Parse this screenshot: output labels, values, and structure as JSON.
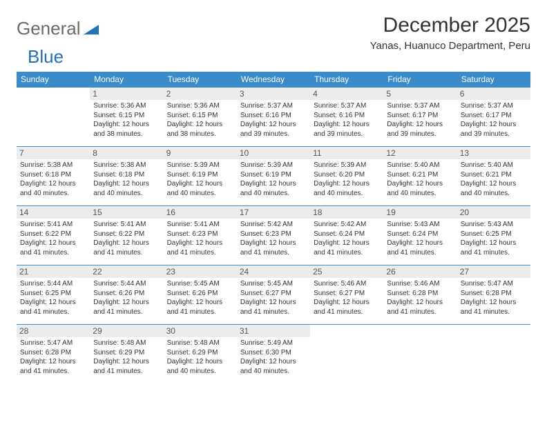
{
  "logo": {
    "part1": "General",
    "part2": "Blue"
  },
  "title": "December 2025",
  "location": "Yanas, Huanuco Department, Peru",
  "colors": {
    "header_bg": "#3a8bc9",
    "daynum_bg": "#ececec",
    "border": "#3a8bc9",
    "text": "#333333",
    "logo_gray": "#6a6a6a",
    "logo_blue": "#2170b8"
  },
  "weekdays": [
    "Sunday",
    "Monday",
    "Tuesday",
    "Wednesday",
    "Thursday",
    "Friday",
    "Saturday"
  ],
  "weeks": [
    [
      null,
      {
        "n": "1",
        "sr": "5:36 AM",
        "ss": "6:15 PM",
        "dl": "12 hours and 38 minutes."
      },
      {
        "n": "2",
        "sr": "5:36 AM",
        "ss": "6:15 PM",
        "dl": "12 hours and 38 minutes."
      },
      {
        "n": "3",
        "sr": "5:37 AM",
        "ss": "6:16 PM",
        "dl": "12 hours and 39 minutes."
      },
      {
        "n": "4",
        "sr": "5:37 AM",
        "ss": "6:16 PM",
        "dl": "12 hours and 39 minutes."
      },
      {
        "n": "5",
        "sr": "5:37 AM",
        "ss": "6:17 PM",
        "dl": "12 hours and 39 minutes."
      },
      {
        "n": "6",
        "sr": "5:37 AM",
        "ss": "6:17 PM",
        "dl": "12 hours and 39 minutes."
      }
    ],
    [
      {
        "n": "7",
        "sr": "5:38 AM",
        "ss": "6:18 PM",
        "dl": "12 hours and 40 minutes."
      },
      {
        "n": "8",
        "sr": "5:38 AM",
        "ss": "6:18 PM",
        "dl": "12 hours and 40 minutes."
      },
      {
        "n": "9",
        "sr": "5:39 AM",
        "ss": "6:19 PM",
        "dl": "12 hours and 40 minutes."
      },
      {
        "n": "10",
        "sr": "5:39 AM",
        "ss": "6:19 PM",
        "dl": "12 hours and 40 minutes."
      },
      {
        "n": "11",
        "sr": "5:39 AM",
        "ss": "6:20 PM",
        "dl": "12 hours and 40 minutes."
      },
      {
        "n": "12",
        "sr": "5:40 AM",
        "ss": "6:21 PM",
        "dl": "12 hours and 40 minutes."
      },
      {
        "n": "13",
        "sr": "5:40 AM",
        "ss": "6:21 PM",
        "dl": "12 hours and 40 minutes."
      }
    ],
    [
      {
        "n": "14",
        "sr": "5:41 AM",
        "ss": "6:22 PM",
        "dl": "12 hours and 41 minutes."
      },
      {
        "n": "15",
        "sr": "5:41 AM",
        "ss": "6:22 PM",
        "dl": "12 hours and 41 minutes."
      },
      {
        "n": "16",
        "sr": "5:41 AM",
        "ss": "6:23 PM",
        "dl": "12 hours and 41 minutes."
      },
      {
        "n": "17",
        "sr": "5:42 AM",
        "ss": "6:23 PM",
        "dl": "12 hours and 41 minutes."
      },
      {
        "n": "18",
        "sr": "5:42 AM",
        "ss": "6:24 PM",
        "dl": "12 hours and 41 minutes."
      },
      {
        "n": "19",
        "sr": "5:43 AM",
        "ss": "6:24 PM",
        "dl": "12 hours and 41 minutes."
      },
      {
        "n": "20",
        "sr": "5:43 AM",
        "ss": "6:25 PM",
        "dl": "12 hours and 41 minutes."
      }
    ],
    [
      {
        "n": "21",
        "sr": "5:44 AM",
        "ss": "6:25 PM",
        "dl": "12 hours and 41 minutes."
      },
      {
        "n": "22",
        "sr": "5:44 AM",
        "ss": "6:26 PM",
        "dl": "12 hours and 41 minutes."
      },
      {
        "n": "23",
        "sr": "5:45 AM",
        "ss": "6:26 PM",
        "dl": "12 hours and 41 minutes."
      },
      {
        "n": "24",
        "sr": "5:45 AM",
        "ss": "6:27 PM",
        "dl": "12 hours and 41 minutes."
      },
      {
        "n": "25",
        "sr": "5:46 AM",
        "ss": "6:27 PM",
        "dl": "12 hours and 41 minutes."
      },
      {
        "n": "26",
        "sr": "5:46 AM",
        "ss": "6:28 PM",
        "dl": "12 hours and 41 minutes."
      },
      {
        "n": "27",
        "sr": "5:47 AM",
        "ss": "6:28 PM",
        "dl": "12 hours and 41 minutes."
      }
    ],
    [
      {
        "n": "28",
        "sr": "5:47 AM",
        "ss": "6:28 PM",
        "dl": "12 hours and 41 minutes."
      },
      {
        "n": "29",
        "sr": "5:48 AM",
        "ss": "6:29 PM",
        "dl": "12 hours and 41 minutes."
      },
      {
        "n": "30",
        "sr": "5:48 AM",
        "ss": "6:29 PM",
        "dl": "12 hours and 40 minutes."
      },
      {
        "n": "31",
        "sr": "5:49 AM",
        "ss": "6:30 PM",
        "dl": "12 hours and 40 minutes."
      },
      null,
      null,
      null
    ]
  ],
  "labels": {
    "sunrise": "Sunrise:",
    "sunset": "Sunset:",
    "daylight": "Daylight:"
  }
}
